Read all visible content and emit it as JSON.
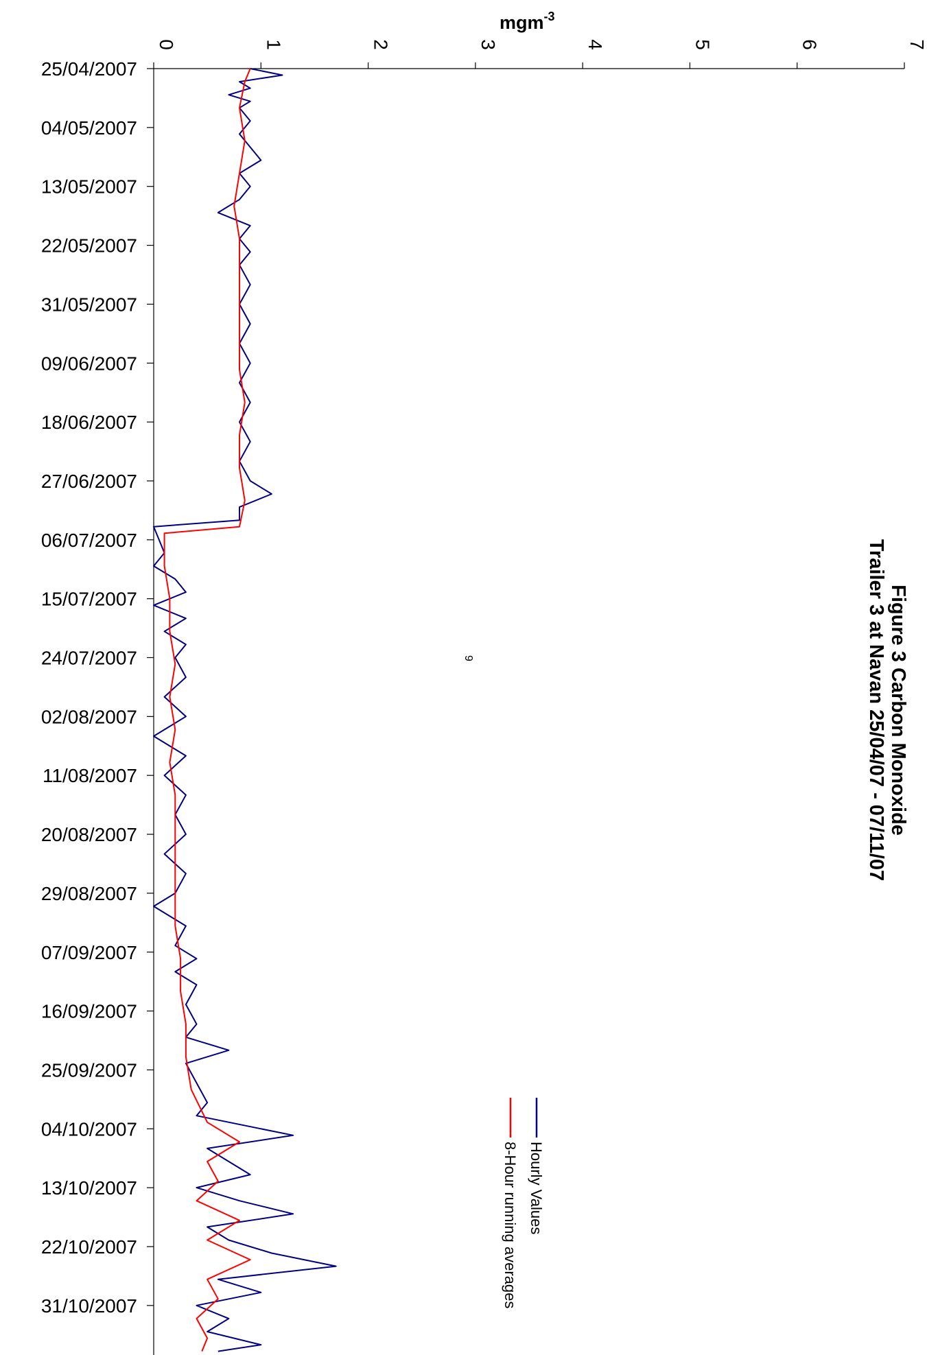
{
  "page": {
    "number": "9"
  },
  "chart_data": {
    "type": "line",
    "title": "Figure 3 Carbon Monoxide",
    "subtitle": "Trailer 3 at Navan 25/04/07 - 07/11/07",
    "ylabel": "mgm",
    "ylabel_superscript": "-3",
    "xlabel": "",
    "ylim": [
      0,
      7
    ],
    "y_ticks": [
      "0",
      "1",
      "2",
      "3",
      "4",
      "5",
      "6",
      "7"
    ],
    "x_tick_labels": [
      "25/04/2007",
      "04/05/2007",
      "13/05/2007",
      "22/05/2007",
      "31/05/2007",
      "09/06/2007",
      "18/06/2007",
      "27/06/2007",
      "06/07/2007",
      "15/07/2007",
      "24/07/2007",
      "02/08/2007",
      "11/08/2007",
      "20/08/2007",
      "29/08/2007",
      "07/09/2007",
      "16/09/2007",
      "25/09/2007",
      "04/10/2007",
      "13/10/2007",
      "22/10/2007",
      "31/10/2007"
    ],
    "x_start": "25/04/2007",
    "x_end": "07/11/2007",
    "orientation": "rotated-90-clockwise",
    "series": [
      {
        "name": "Hourly Values",
        "color": "#000080",
        "points": [
          [
            "25/04/2007",
            0.9
          ],
          [
            "26/04/2007",
            1.2
          ],
          [
            "27/04/2007",
            0.8
          ],
          [
            "28/04/2007",
            0.9
          ],
          [
            "29/04/2007",
            0.7
          ],
          [
            "30/04/2007",
            0.9
          ],
          [
            "01/05/2007",
            0.8
          ],
          [
            "03/05/2007",
            0.9
          ],
          [
            "05/05/2007",
            0.8
          ],
          [
            "07/05/2007",
            0.9
          ],
          [
            "09/05/2007",
            1.0
          ],
          [
            "11/05/2007",
            0.8
          ],
          [
            "13/05/2007",
            0.9
          ],
          [
            "15/05/2007",
            0.8
          ],
          [
            "17/05/2007",
            0.6
          ],
          [
            "19/05/2007",
            0.9
          ],
          [
            "21/05/2007",
            0.8
          ],
          [
            "23/05/2007",
            0.9
          ],
          [
            "25/05/2007",
            0.8
          ],
          [
            "28/05/2007",
            0.9
          ],
          [
            "31/05/2007",
            0.8
          ],
          [
            "03/06/2007",
            0.9
          ],
          [
            "06/06/2007",
            0.8
          ],
          [
            "09/06/2007",
            0.9
          ],
          [
            "12/06/2007",
            0.8
          ],
          [
            "15/06/2007",
            0.9
          ],
          [
            "18/06/2007",
            0.8
          ],
          [
            "21/06/2007",
            0.9
          ],
          [
            "24/06/2007",
            0.8
          ],
          [
            "27/06/2007",
            0.9
          ],
          [
            "29/06/2007",
            1.1
          ],
          [
            "01/07/2007",
            0.8
          ],
          [
            "03/07/2007",
            0.8
          ],
          [
            "04/07/2007",
            0.0
          ],
          [
            "06/07/2007",
            0.05
          ],
          [
            "08/07/2007",
            0.1
          ],
          [
            "10/07/2007",
            0.0
          ],
          [
            "12/07/2007",
            0.2
          ],
          [
            "14/07/2007",
            0.3
          ],
          [
            "16/07/2007",
            0.0
          ],
          [
            "18/07/2007",
            0.3
          ],
          [
            "20/07/2007",
            0.1
          ],
          [
            "22/07/2007",
            0.3
          ],
          [
            "24/07/2007",
            0.2
          ],
          [
            "27/07/2007",
            0.3
          ],
          [
            "30/07/2007",
            0.1
          ],
          [
            "02/08/2007",
            0.3
          ],
          [
            "05/08/2007",
            0.0
          ],
          [
            "08/08/2007",
            0.3
          ],
          [
            "11/08/2007",
            0.1
          ],
          [
            "14/08/2007",
            0.3
          ],
          [
            "17/08/2007",
            0.2
          ],
          [
            "20/08/2007",
            0.3
          ],
          [
            "23/08/2007",
            0.1
          ],
          [
            "26/08/2007",
            0.3
          ],
          [
            "29/08/2007",
            0.2
          ],
          [
            "31/08/2007",
            0.0
          ],
          [
            "03/09/2007",
            0.3
          ],
          [
            "06/09/2007",
            0.2
          ],
          [
            "08/09/2007",
            0.4
          ],
          [
            "10/09/2007",
            0.2
          ],
          [
            "12/09/2007",
            0.4
          ],
          [
            "15/09/2007",
            0.3
          ],
          [
            "18/09/2007",
            0.4
          ],
          [
            "20/09/2007",
            0.3
          ],
          [
            "22/09/2007",
            0.7
          ],
          [
            "24/09/2007",
            0.3
          ],
          [
            "27/09/2007",
            0.4
          ],
          [
            "30/09/2007",
            0.5
          ],
          [
            "02/10/2007",
            0.4
          ],
          [
            "04/10/2007",
            1.0
          ],
          [
            "05/10/2007",
            1.3
          ],
          [
            "07/10/2007",
            0.5
          ],
          [
            "09/10/2007",
            0.7
          ],
          [
            "11/10/2007",
            0.9
          ],
          [
            "13/10/2007",
            0.4
          ],
          [
            "15/10/2007",
            0.8
          ],
          [
            "17/10/2007",
            1.3
          ],
          [
            "19/10/2007",
            0.5
          ],
          [
            "21/10/2007",
            0.7
          ],
          [
            "23/10/2007",
            1.1
          ],
          [
            "25/10/2007",
            1.7
          ],
          [
            "27/10/2007",
            0.6
          ],
          [
            "29/10/2007",
            1.0
          ],
          [
            "31/10/2007",
            0.4
          ],
          [
            "02/11/2007",
            0.7
          ],
          [
            "04/11/2007",
            0.5
          ],
          [
            "06/11/2007",
            1.0
          ],
          [
            "07/11/2007",
            0.6
          ]
        ]
      },
      {
        "name": "8-Hour running averages",
        "color": "#ff0000",
        "points": [
          [
            "25/04/2007",
            0.9
          ],
          [
            "27/04/2007",
            0.85
          ],
          [
            "01/05/2007",
            0.8
          ],
          [
            "06/05/2007",
            0.85
          ],
          [
            "11/05/2007",
            0.8
          ],
          [
            "16/05/2007",
            0.75
          ],
          [
            "21/05/2007",
            0.8
          ],
          [
            "26/05/2007",
            0.8
          ],
          [
            "31/05/2007",
            0.8
          ],
          [
            "05/06/2007",
            0.8
          ],
          [
            "10/06/2007",
            0.8
          ],
          [
            "15/06/2007",
            0.85
          ],
          [
            "20/06/2007",
            0.8
          ],
          [
            "25/06/2007",
            0.8
          ],
          [
            "30/06/2007",
            0.85
          ],
          [
            "04/07/2007",
            0.8
          ],
          [
            "05/07/2007",
            0.1
          ],
          [
            "10/07/2007",
            0.1
          ],
          [
            "15/07/2007",
            0.15
          ],
          [
            "20/07/2007",
            0.15
          ],
          [
            "25/07/2007",
            0.2
          ],
          [
            "30/07/2007",
            0.15
          ],
          [
            "04/08/2007",
            0.2
          ],
          [
            "09/08/2007",
            0.15
          ],
          [
            "14/08/2007",
            0.2
          ],
          [
            "19/08/2007",
            0.2
          ],
          [
            "24/08/2007",
            0.2
          ],
          [
            "29/08/2007",
            0.2
          ],
          [
            "03/09/2007",
            0.2
          ],
          [
            "08/09/2007",
            0.25
          ],
          [
            "13/09/2007",
            0.25
          ],
          [
            "18/09/2007",
            0.3
          ],
          [
            "23/09/2007",
            0.3
          ],
          [
            "28/09/2007",
            0.35
          ],
          [
            "03/10/2007",
            0.5
          ],
          [
            "06/10/2007",
            0.8
          ],
          [
            "09/10/2007",
            0.5
          ],
          [
            "12/10/2007",
            0.6
          ],
          [
            "15/10/2007",
            0.4
          ],
          [
            "18/10/2007",
            0.8
          ],
          [
            "21/10/2007",
            0.5
          ],
          [
            "24/10/2007",
            0.9
          ],
          [
            "27/10/2007",
            0.5
          ],
          [
            "30/10/2007",
            0.6
          ],
          [
            "02/11/2007",
            0.4
          ],
          [
            "05/11/2007",
            0.5
          ],
          [
            "07/11/2007",
            0.45
          ]
        ]
      }
    ],
    "legend": {
      "placement": "top-right",
      "entries": [
        "Hourly Values",
        "8-Hour running averages"
      ]
    }
  }
}
